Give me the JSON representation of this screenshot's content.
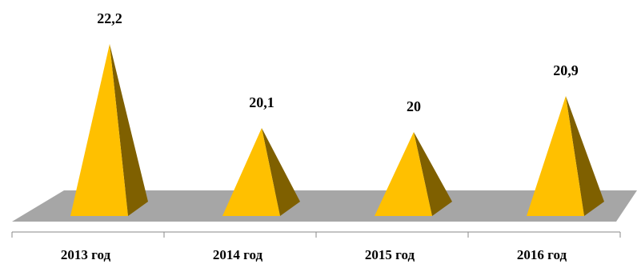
{
  "chart_data": {
    "type": "pyramid",
    "categories": [
      "2013 год",
      "2014 год",
      "2015 год",
      "2016 год"
    ],
    "values": [
      22.2,
      20.1,
      20,
      20.9
    ],
    "value_labels": [
      "22,2",
      "20,1",
      "20",
      "20,9"
    ],
    "color": "#ffc000",
    "ylim": [
      17.9,
      22.6
    ]
  }
}
